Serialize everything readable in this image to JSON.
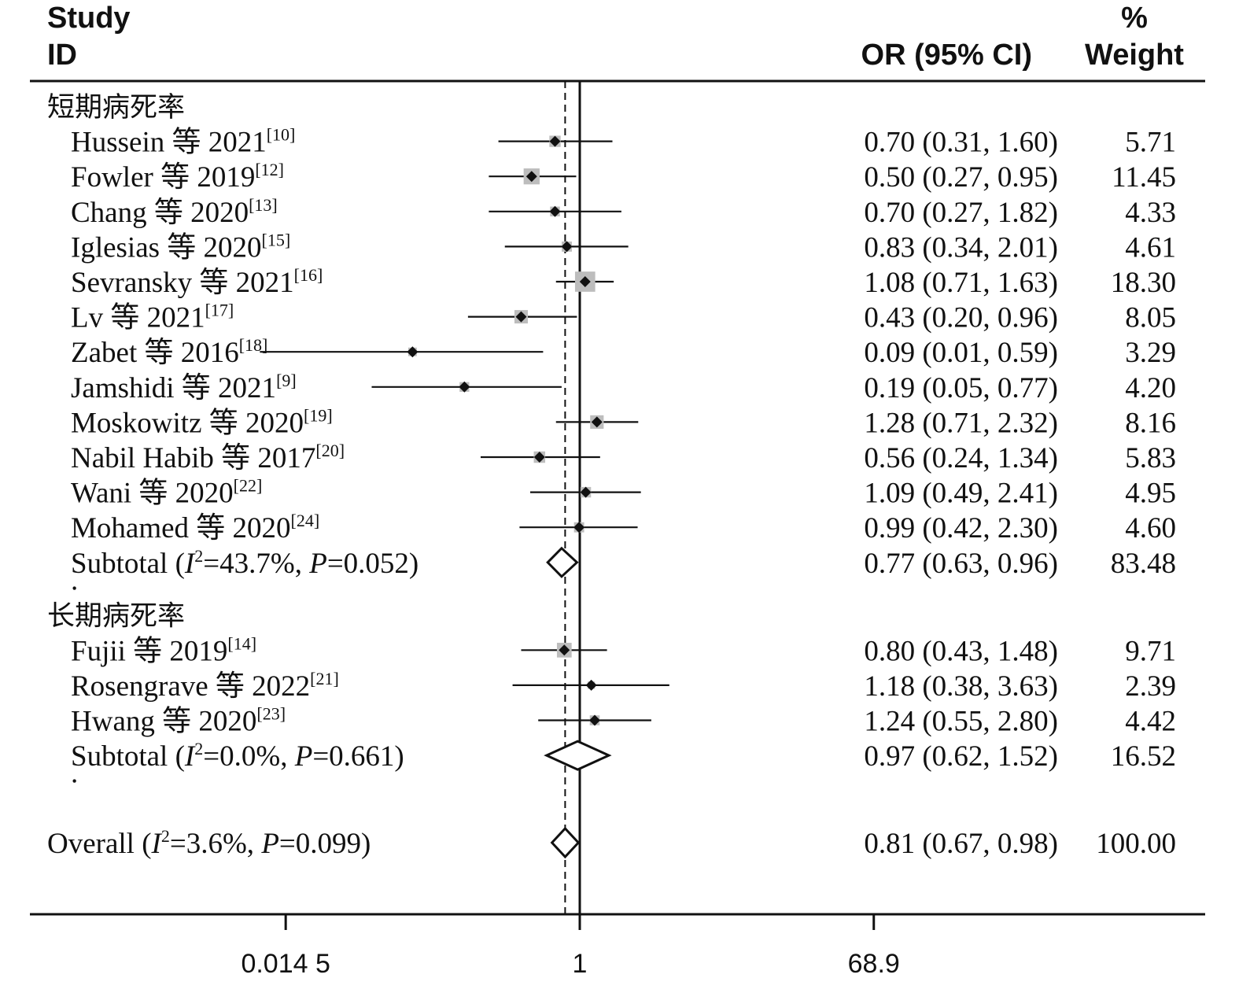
{
  "headers": {
    "study_line1": "Study",
    "study_line2": "ID",
    "or": "OR (95% CI)",
    "weight_line1": "%",
    "weight_line2": "Weight"
  },
  "chart_data": {
    "type": "forest",
    "x_scale": "log",
    "null_line": 1,
    "overall_or": 0.81,
    "xlim": [
      0.0145,
      68.9
    ],
    "x_ticks": [
      "0.014 5",
      "1",
      "68.9"
    ],
    "groups": [
      {
        "name": "短期病死率",
        "studies": [
          {
            "label": "Hussein 等 2021",
            "ref": "[10]",
            "or": 0.7,
            "lo": 0.31,
            "hi": 1.6,
            "ci_text": "0.70 (0.31, 1.60)",
            "weight": "5.71"
          },
          {
            "label": "Fowler 等 2019",
            "ref": "[12]",
            "or": 0.5,
            "lo": 0.27,
            "hi": 0.95,
            "ci_text": "0.50 (0.27, 0.95)",
            "weight": "11.45"
          },
          {
            "label": "Chang 等 2020",
            "ref": "[13]",
            "or": 0.7,
            "lo": 0.27,
            "hi": 1.82,
            "ci_text": "0.70 (0.27, 1.82)",
            "weight": "4.33"
          },
          {
            "label": "Iglesias 等 2020",
            "ref": "[15]",
            "or": 0.83,
            "lo": 0.34,
            "hi": 2.01,
            "ci_text": "0.83 (0.34, 2.01)",
            "weight": "4.61"
          },
          {
            "label": "Sevransky 等 2021",
            "ref": "[16]",
            "or": 1.08,
            "lo": 0.71,
            "hi": 1.63,
            "ci_text": "1.08 (0.71, 1.63)",
            "weight": "18.30"
          },
          {
            "label": "Lv 等 2021",
            "ref": "[17]",
            "or": 0.43,
            "lo": 0.2,
            "hi": 0.96,
            "ci_text": "0.43 (0.20, 0.96)",
            "weight": "8.05"
          },
          {
            "label": "Zabet 等 2016",
            "ref": "[18]",
            "or": 0.09,
            "lo": 0.01,
            "hi": 0.59,
            "ci_text": "0.09 (0.01, 0.59)",
            "weight": "3.29"
          },
          {
            "label": "Jamshidi 等 2021",
            "ref": "[9]",
            "or": 0.19,
            "lo": 0.05,
            "hi": 0.77,
            "ci_text": "0.19 (0.05, 0.77)",
            "weight": "4.20"
          },
          {
            "label": "Moskowitz 等 2020",
            "ref": "[19]",
            "or": 1.28,
            "lo": 0.71,
            "hi": 2.32,
            "ci_text": "1.28 (0.71, 2.32)",
            "weight": "8.16"
          },
          {
            "label": "Nabil Habib 等 2017",
            "ref": "[20]",
            "or": 0.56,
            "lo": 0.24,
            "hi": 1.34,
            "ci_text": "0.56 (0.24, 1.34)",
            "weight": "5.83"
          },
          {
            "label": "Wani 等 2020",
            "ref": "[22]",
            "or": 1.09,
            "lo": 0.49,
            "hi": 2.41,
            "ci_text": "1.09 (0.49, 2.41)",
            "weight": "4.95"
          },
          {
            "label": "Mohamed 等 2020",
            "ref": "[24]",
            "or": 0.99,
            "lo": 0.42,
            "hi": 2.3,
            "ci_text": "0.99 (0.42, 2.30)",
            "weight": "4.60"
          }
        ],
        "subtotal": {
          "label_pre": "Subtotal  (",
          "i2_label": "I",
          "i2_value": "=43.7%, ",
          "p_label": "P",
          "p_value": "=0.052)",
          "or": 0.77,
          "lo": 0.63,
          "hi": 0.96,
          "ci_text": "0.77 (0.63, 0.96)",
          "weight": "83.48"
        }
      },
      {
        "name": "长期病死率",
        "studies": [
          {
            "label": "Fujii 等 2019",
            "ref": "[14]",
            "or": 0.8,
            "lo": 0.43,
            "hi": 1.48,
            "ci_text": "0.80 (0.43, 1.48)",
            "weight": "9.71"
          },
          {
            "label": "Rosengrave 等 2022",
            "ref": "[21]",
            "or": 1.18,
            "lo": 0.38,
            "hi": 3.63,
            "ci_text": "1.18 (0.38, 3.63)",
            "weight": "2.39"
          },
          {
            "label": "Hwang 等 2020",
            "ref": "[23]",
            "or": 1.24,
            "lo": 0.55,
            "hi": 2.8,
            "ci_text": "1.24 (0.55, 2.80)",
            "weight": "4.42"
          }
        ],
        "subtotal": {
          "label_pre": "Subtotal  (",
          "i2_label": "I",
          "i2_value": "=0.0%, ",
          "p_label": "P",
          "p_value": "=0.661)",
          "or": 0.97,
          "lo": 0.62,
          "hi": 1.52,
          "ci_text": "0.97 (0.62, 1.52)",
          "weight": "16.52"
        }
      }
    ],
    "overall": {
      "label_pre": "Overall  (",
      "i2_label": "I",
      "i2_value": "=3.6%, ",
      "p_label": "P",
      "p_value": "=0.099)",
      "or": 0.81,
      "lo": 0.67,
      "hi": 0.98,
      "ci_text": "0.81 (0.67, 0.98)",
      "weight": "100.00"
    },
    "separator": ".",
    "colors": {
      "box": "#bdbdbd",
      "line": "#111111",
      "diamond_fill": "#ffffff"
    }
  }
}
